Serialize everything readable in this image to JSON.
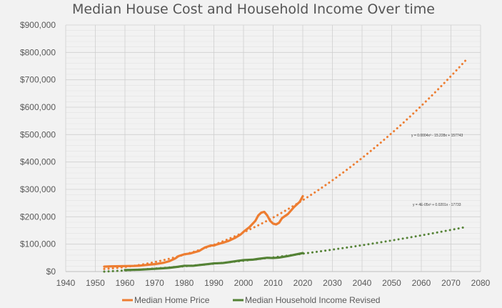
{
  "chart_data": {
    "type": "line",
    "title": "Median House Cost and Household Income Over time",
    "xlabel": "",
    "ylabel": "",
    "xlim": [
      1940,
      2080
    ],
    "ylim": [
      0,
      900000
    ],
    "x_ticks": [
      "1940",
      "1950",
      "1960",
      "1970",
      "1980",
      "1990",
      "2000",
      "2010",
      "2020",
      "2030",
      "2040",
      "2050",
      "2060",
      "2070",
      "2080"
    ],
    "y_ticks": [
      "$0",
      "$100,000",
      "$200,000",
      "$300,000",
      "$400,000",
      "$500,000",
      "$600,000",
      "$700,000",
      "$800,000",
      "$900,000"
    ],
    "grid": true,
    "legend_position": "bottom",
    "series": [
      {
        "name": "Median Home Price",
        "color": "#ed7d31",
        "x": [
          1953,
          1955,
          1960,
          1963,
          1965,
          1968,
          1970,
          1973,
          1975,
          1977,
          1978,
          1980,
          1982,
          1985,
          1987,
          1989,
          1990,
          1991,
          1993,
          1995,
          1997,
          1999,
          2000,
          2002,
          2004,
          2005,
          2006,
          2007,
          2008,
          2009,
          2010,
          2011,
          2012,
          2013,
          2015,
          2017,
          2019,
          2020
        ],
        "y": [
          18000,
          19000,
          20000,
          20500,
          21500,
          25000,
          27000,
          32000,
          38000,
          48000,
          56000,
          63000,
          66000,
          75000,
          88000,
          95000,
          95000,
          99000,
          105000,
          112000,
          122000,
          135000,
          145000,
          162000,
          185000,
          205000,
          215000,
          218000,
          205000,
          185000,
          175000,
          172000,
          178000,
          195000,
          210000,
          235000,
          255000,
          275000
        ]
      },
      {
        "name": "Median Household Income Revised",
        "color": "#548235",
        "x": [
          1960,
          1962,
          1965,
          1968,
          1970,
          1973,
          1975,
          1978,
          1980,
          1983,
          1985,
          1988,
          1990,
          1993,
          1995,
          1998,
          2000,
          2003,
          2005,
          2008,
          2010,
          2012,
          2015,
          2018,
          2020
        ],
        "y": [
          5600,
          6000,
          6900,
          8600,
          9900,
          12000,
          13700,
          17600,
          21000,
          21000,
          23600,
          27200,
          29900,
          31200,
          34100,
          38900,
          41900,
          43300,
          46300,
          50300,
          49400,
          51000,
          56500,
          63200,
          67500
        ]
      }
    ],
    "trendlines": [
      {
        "for": "Median Home Price",
        "equation": "y = 0.0004x³ - 15.228x + 157743",
        "x_range": [
          1953,
          2075
        ]
      },
      {
        "for": "Median Household Income Revised",
        "equation": "y = 4E-05x³ + 0.0201x - 17733",
        "x_range": [
          1953,
          2075
        ]
      }
    ]
  }
}
